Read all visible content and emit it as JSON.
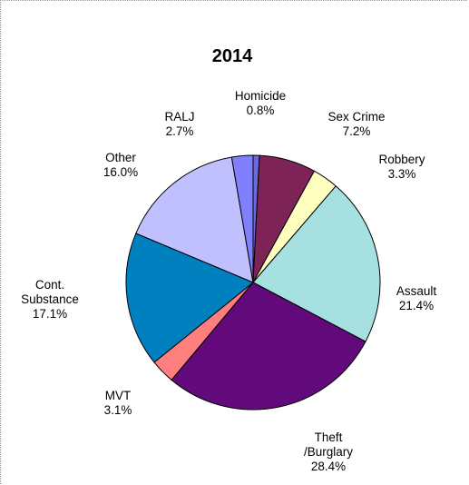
{
  "chart_data": {
    "type": "pie",
    "title": "2014",
    "slices": [
      {
        "label": "Homicide",
        "pct_label": "0.8%",
        "value": 0.8,
        "color": "#6a6adb"
      },
      {
        "label": "Sex Crime",
        "pct_label": "7.2%",
        "value": 7.2,
        "color": "#7d2356"
      },
      {
        "label": "Robbery",
        "pct_label": "3.3%",
        "value": 3.3,
        "color": "#ffffc0"
      },
      {
        "label": "Assault",
        "pct_label": "21.4%",
        "value": 21.4,
        "color": "#a6e0e0"
      },
      {
        "label": "Theft /Burglary",
        "pct_label": "28.4%",
        "value": 28.4,
        "color": "#620a7c"
      },
      {
        "label": "MVT",
        "pct_label": "3.1%",
        "value": 3.1,
        "color": "#ff7f7f"
      },
      {
        "label": "Cont. Substance",
        "pct_label": "17.1%",
        "value": 17.1,
        "color": "#0180c0"
      },
      {
        "label": "Other",
        "pct_label": "16.0%",
        "value": 16.0,
        "color": "#c0c0ff"
      },
      {
        "label": "RALJ",
        "pct_label": "2.7%",
        "value": 2.7,
        "color": "#8080ff"
      }
    ]
  }
}
